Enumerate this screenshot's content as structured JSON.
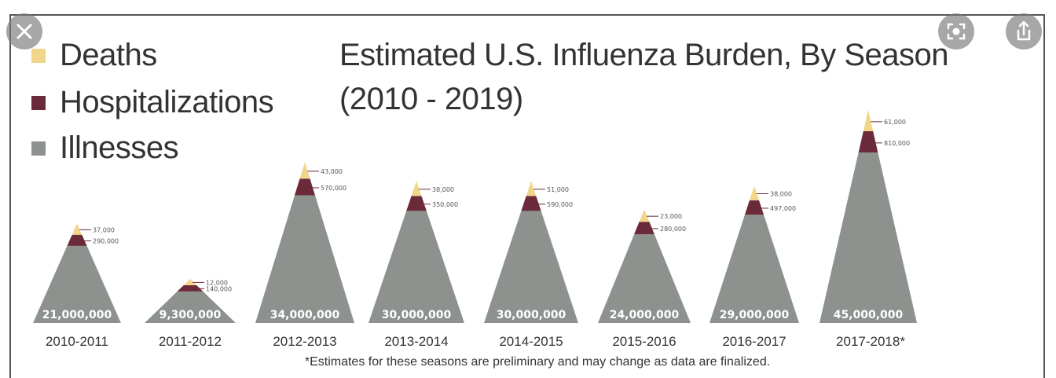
{
  "controls": {
    "close_icon": "close-icon",
    "lens_icon": "lens-icon",
    "share_icon": "share-icon"
  },
  "chart_data": {
    "type": "area",
    "title_line1": "Estimated U.S. Influenza Burden, By Season",
    "title_line2": "(2010 - 2019)",
    "legend": {
      "placement": "top-left",
      "items": [
        {
          "label": "Deaths",
          "color": "#f1d58a"
        },
        {
          "label": "Hospitalizations",
          "color": "#6b2a3a"
        },
        {
          "label": "Illnesses",
          "color": "#8e928e"
        }
      ]
    },
    "categories": [
      "2010-2011",
      "2011-2012",
      "2012-2013",
      "2013-2014",
      "2014-2015",
      "2015-2016",
      "2016-2017",
      "2017-2018*"
    ],
    "illness_labels": [
      "21,000,000",
      "9,300,000",
      "34,000,000",
      "30,000,000",
      "30,000,000",
      "24,000,000",
      "29,000,000",
      "45,000,000"
    ],
    "death_labels": [
      "37,000",
      "12,000",
      "43,000",
      "38,000",
      "51,000",
      "23,000",
      "38,000",
      "61,000"
    ],
    "hosp_labels": [
      "290,000",
      "140,000",
      "570,000",
      "350,000",
      "590,000",
      "280,000",
      "497,000",
      "810,000"
    ],
    "series": [
      {
        "name": "Illnesses",
        "values": [
          21000000,
          9300000,
          34000000,
          30000000,
          30000000,
          24000000,
          29000000,
          45000000
        ]
      },
      {
        "name": "Hospitalizations",
        "values": [
          290000,
          140000,
          570000,
          350000,
          590000,
          280000,
          497000,
          810000
        ]
      },
      {
        "name": "Deaths",
        "values": [
          37000,
          12000,
          43000,
          38000,
          51000,
          23000,
          38000,
          61000
        ]
      }
    ],
    "footnote": "*Estimates for these seasons are preliminary and may change as data are finalized."
  }
}
